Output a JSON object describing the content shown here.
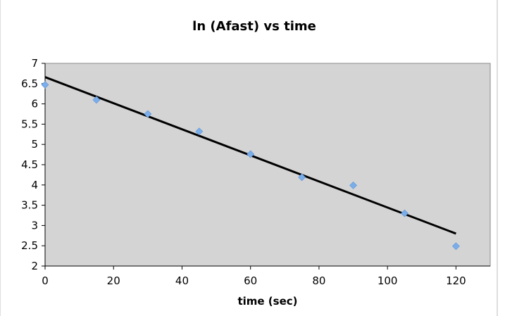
{
  "chart_data": {
    "type": "scatter",
    "title": "ln (Afast) vs time",
    "xlabel": "time (sec)",
    "ylabel": "",
    "xlim": [
      0,
      130
    ],
    "ylim": [
      2,
      7
    ],
    "x_ticks": [
      0,
      20,
      40,
      60,
      80,
      100,
      120
    ],
    "y_ticks": [
      2,
      2.5,
      3,
      3.5,
      4,
      4.5,
      5,
      5.5,
      6,
      6.5,
      7
    ],
    "x_tick_labels": [
      "0",
      "20",
      "40",
      "60",
      "80",
      "100",
      "120"
    ],
    "y_tick_labels": [
      "2",
      "2.5",
      "3",
      "3.5",
      "4",
      "4.5",
      "5",
      "5.5",
      "6",
      "6.5",
      "7"
    ],
    "grid": false,
    "legend": "none",
    "series": [
      {
        "type": "scatter",
        "x": [
          0,
          15,
          30,
          45,
          60,
          75,
          90,
          105,
          120
        ],
        "y": [
          6.47,
          6.1,
          5.75,
          5.32,
          4.76,
          4.19,
          3.99,
          3.3,
          2.49
        ],
        "color": "#7aaeea",
        "marker": "diamond"
      },
      {
        "type": "line",
        "trendline": "linear",
        "x": [
          0,
          120
        ],
        "y": [
          6.66,
          2.8
        ],
        "color": "#000000"
      }
    ],
    "plot_background": "#d4d4d4",
    "page_background": "#ffffff"
  }
}
